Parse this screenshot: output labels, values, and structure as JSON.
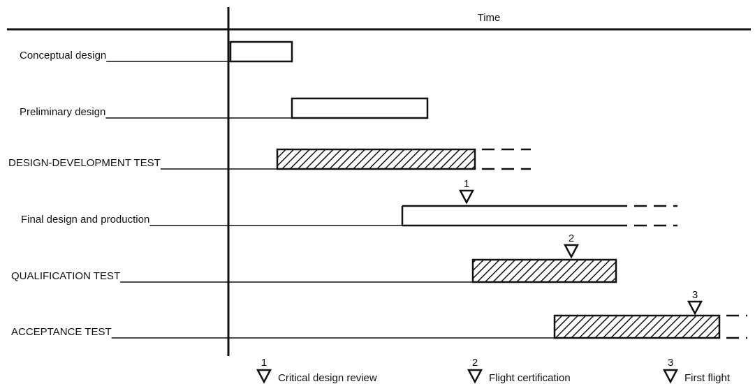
{
  "header": {
    "title": "Time"
  },
  "tasks": [
    {
      "label": "Conceptual design"
    },
    {
      "label": "Preliminary design"
    },
    {
      "label": "DESIGN-DEVELOPMENT TEST"
    },
    {
      "label": "Final design and production"
    },
    {
      "label": "QUALIFICATION TEST"
    },
    {
      "label": "ACCEPTANCE TEST"
    }
  ],
  "milestones": [
    {
      "number": "1",
      "label": "Critical design review"
    },
    {
      "number": "2",
      "label": "Flight certification"
    },
    {
      "number": "3",
      "label": "First flight"
    }
  ]
}
